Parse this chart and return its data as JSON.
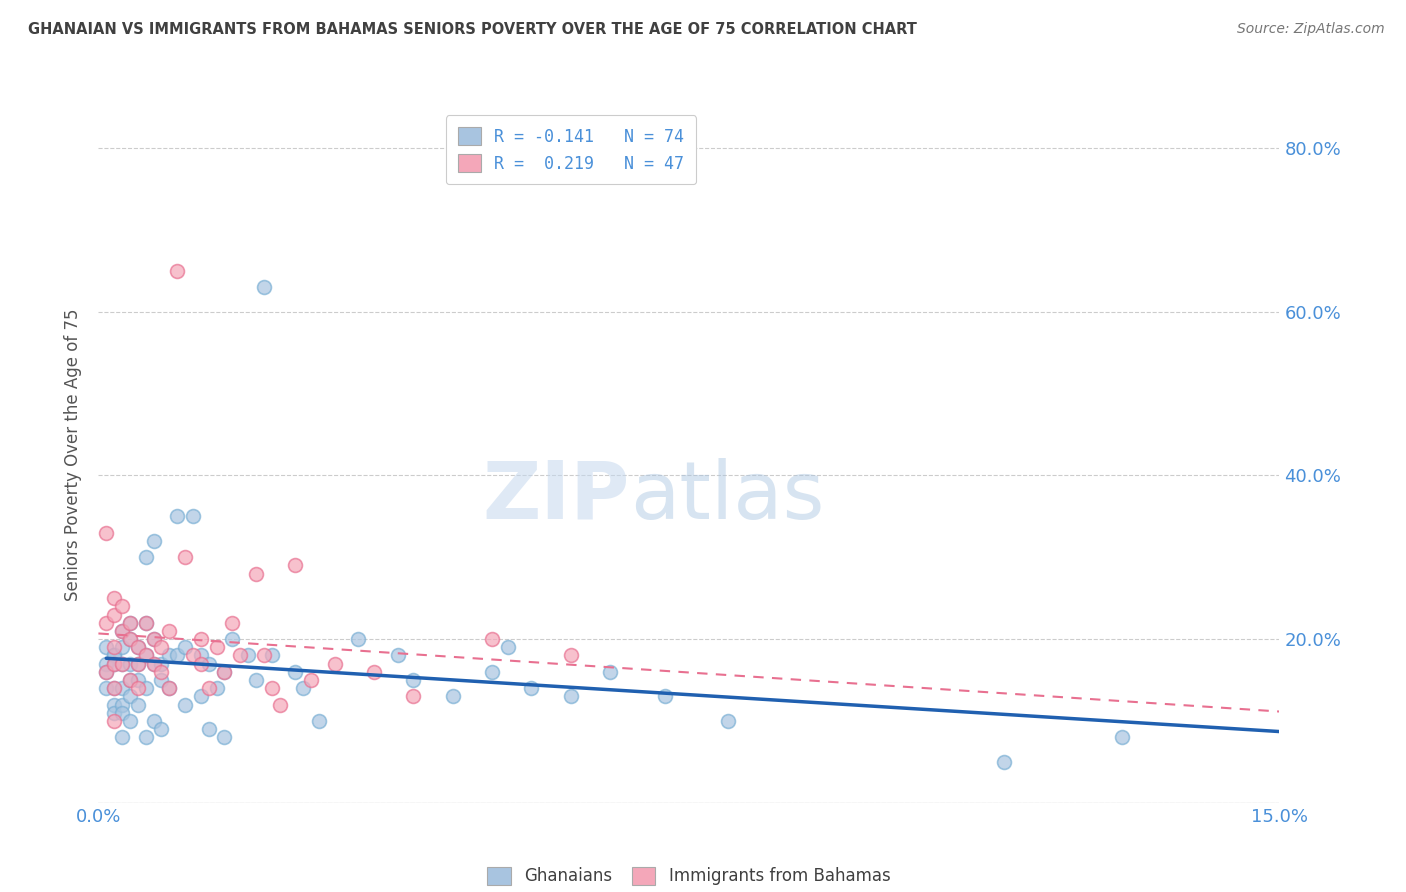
{
  "title": "GHANAIAN VS IMMIGRANTS FROM BAHAMAS SENIORS POVERTY OVER THE AGE OF 75 CORRELATION CHART",
  "source": "Source: ZipAtlas.com",
  "ylabel": "Seniors Poverty Over the Age of 75",
  "xlim": [
    0.0,
    0.15
  ],
  "ylim": [
    0.0,
    0.85
  ],
  "yticks": [
    0.0,
    0.2,
    0.4,
    0.6,
    0.8
  ],
  "ytick_labels": [
    "",
    "20.0%",
    "40.0%",
    "60.0%",
    "80.0%"
  ],
  "xticks": [
    0.0,
    0.05,
    0.1,
    0.15
  ],
  "xtick_labels": [
    "0.0%",
    "",
    "",
    "15.0%"
  ],
  "ghanaian_color": "#a8c4e0",
  "ghanaian_edge_color": "#7aafd4",
  "bahamas_color": "#f4a7b9",
  "bahamas_edge_color": "#e87090",
  "line_ghanaian_color": "#2060b0",
  "line_bahamas_color": "#e87090",
  "ghanaian_R": -0.141,
  "ghanaian_N": 74,
  "bahamas_R": 0.219,
  "bahamas_N": 47,
  "legend_label_1": "Ghanaians",
  "legend_label_2": "Immigrants from Bahamas",
  "watermark_zip": "ZIP",
  "watermark_atlas": "atlas",
  "ghanaian_x": [
    0.001,
    0.001,
    0.001,
    0.001,
    0.002,
    0.002,
    0.002,
    0.002,
    0.002,
    0.002,
    0.003,
    0.003,
    0.003,
    0.003,
    0.003,
    0.003,
    0.003,
    0.004,
    0.004,
    0.004,
    0.004,
    0.004,
    0.004,
    0.005,
    0.005,
    0.005,
    0.005,
    0.006,
    0.006,
    0.006,
    0.006,
    0.006,
    0.007,
    0.007,
    0.007,
    0.007,
    0.008,
    0.008,
    0.008,
    0.009,
    0.009,
    0.01,
    0.01,
    0.011,
    0.011,
    0.012,
    0.013,
    0.013,
    0.014,
    0.014,
    0.015,
    0.016,
    0.016,
    0.017,
    0.019,
    0.02,
    0.021,
    0.022,
    0.025,
    0.026,
    0.028,
    0.033,
    0.038,
    0.04,
    0.045,
    0.05,
    0.052,
    0.055,
    0.06,
    0.065,
    0.072,
    0.08,
    0.115,
    0.13
  ],
  "ghanaian_y": [
    0.17,
    0.19,
    0.16,
    0.14,
    0.18,
    0.18,
    0.17,
    0.14,
    0.12,
    0.11,
    0.21,
    0.19,
    0.17,
    0.14,
    0.12,
    0.11,
    0.08,
    0.22,
    0.2,
    0.17,
    0.15,
    0.13,
    0.1,
    0.19,
    0.17,
    0.15,
    0.12,
    0.3,
    0.22,
    0.18,
    0.14,
    0.08,
    0.32,
    0.2,
    0.17,
    0.1,
    0.17,
    0.15,
    0.09,
    0.18,
    0.14,
    0.35,
    0.18,
    0.19,
    0.12,
    0.35,
    0.18,
    0.13,
    0.17,
    0.09,
    0.14,
    0.16,
    0.08,
    0.2,
    0.18,
    0.15,
    0.63,
    0.18,
    0.16,
    0.14,
    0.1,
    0.2,
    0.18,
    0.15,
    0.13,
    0.16,
    0.19,
    0.14,
    0.13,
    0.16,
    0.13,
    0.1,
    0.05,
    0.08
  ],
  "bahamas_x": [
    0.001,
    0.001,
    0.001,
    0.002,
    0.002,
    0.002,
    0.002,
    0.002,
    0.002,
    0.003,
    0.003,
    0.003,
    0.004,
    0.004,
    0.004,
    0.005,
    0.005,
    0.005,
    0.006,
    0.006,
    0.007,
    0.007,
    0.008,
    0.008,
    0.009,
    0.009,
    0.01,
    0.011,
    0.012,
    0.013,
    0.013,
    0.014,
    0.015,
    0.016,
    0.017,
    0.018,
    0.02,
    0.021,
    0.022,
    0.023,
    0.025,
    0.027,
    0.03,
    0.035,
    0.04,
    0.05,
    0.06
  ],
  "bahamas_y": [
    0.33,
    0.22,
    0.16,
    0.25,
    0.23,
    0.19,
    0.17,
    0.14,
    0.1,
    0.24,
    0.21,
    0.17,
    0.22,
    0.2,
    0.15,
    0.19,
    0.17,
    0.14,
    0.22,
    0.18,
    0.2,
    0.17,
    0.19,
    0.16,
    0.21,
    0.14,
    0.65,
    0.3,
    0.18,
    0.2,
    0.17,
    0.14,
    0.19,
    0.16,
    0.22,
    0.18,
    0.28,
    0.18,
    0.14,
    0.12,
    0.29,
    0.15,
    0.17,
    0.16,
    0.13,
    0.2,
    0.18
  ]
}
